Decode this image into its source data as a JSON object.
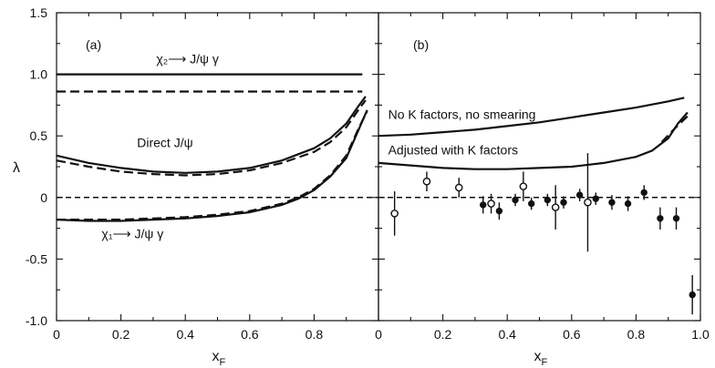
{
  "chart_data": [
    {
      "panel_label": "(a)",
      "type": "line",
      "xlabel": "x",
      "xlabel_sub": "F",
      "ylabel": "λ",
      "xlim": [
        0,
        1.0
      ],
      "ylim": [
        -1.0,
        1.5
      ],
      "x_ticks": [
        "0",
        "0.2",
        "0.4",
        "0.6",
        "0.8"
      ],
      "y_ticks": [
        "1.5",
        "1.0",
        "0.5",
        "0",
        "-0.5",
        "-1.0"
      ],
      "annotations": [
        {
          "text": "χ₂⟶ J/ψ γ",
          "x": 0.31,
          "y": 1.09
        },
        {
          "text": "Direct J/ψ",
          "x": 0.25,
          "y": 0.41
        },
        {
          "text": "χ₁⟶ J/ψ γ",
          "x": 0.14,
          "y": -0.33
        }
      ],
      "series": [
        {
          "style": "solid",
          "points": [
            [
              0,
              1.0
            ],
            [
              0.95,
              1.0
            ]
          ]
        },
        {
          "style": "dashed",
          "points": [
            [
              0,
              0.86
            ],
            [
              0.95,
              0.86
            ]
          ]
        },
        {
          "style": "solid",
          "points": [
            [
              0,
              0.34
            ],
            [
              0.1,
              0.28
            ],
            [
              0.2,
              0.24
            ],
            [
              0.3,
              0.21
            ],
            [
              0.4,
              0.2
            ],
            [
              0.5,
              0.21
            ],
            [
              0.6,
              0.24
            ],
            [
              0.7,
              0.3
            ],
            [
              0.8,
              0.4
            ],
            [
              0.85,
              0.48
            ],
            [
              0.9,
              0.6
            ],
            [
              0.94,
              0.75
            ],
            [
              0.96,
              0.82
            ]
          ]
        },
        {
          "style": "dashed",
          "points": [
            [
              0,
              0.3
            ],
            [
              0.1,
              0.25
            ],
            [
              0.2,
              0.21
            ],
            [
              0.3,
              0.19
            ],
            [
              0.4,
              0.18
            ],
            [
              0.5,
              0.19
            ],
            [
              0.6,
              0.22
            ],
            [
              0.7,
              0.28
            ],
            [
              0.8,
              0.37
            ],
            [
              0.85,
              0.45
            ],
            [
              0.9,
              0.57
            ],
            [
              0.94,
              0.72
            ],
            [
              0.96,
              0.79
            ]
          ]
        },
        {
          "style": "solid",
          "points": [
            [
              0,
              -0.18
            ],
            [
              0.1,
              -0.19
            ],
            [
              0.2,
              -0.19
            ],
            [
              0.3,
              -0.18
            ],
            [
              0.4,
              -0.17
            ],
            [
              0.5,
              -0.15
            ],
            [
              0.6,
              -0.12
            ],
            [
              0.7,
              -0.06
            ],
            [
              0.75,
              -0.01
            ],
            [
              0.8,
              0.06
            ],
            [
              0.85,
              0.17
            ],
            [
              0.9,
              0.32
            ],
            [
              0.94,
              0.56
            ],
            [
              0.965,
              0.71
            ]
          ]
        },
        {
          "style": "dashed",
          "points": [
            [
              0,
              -0.18
            ],
            [
              0.1,
              -0.18
            ],
            [
              0.2,
              -0.18
            ],
            [
              0.3,
              -0.17
            ],
            [
              0.4,
              -0.16
            ],
            [
              0.5,
              -0.14
            ],
            [
              0.6,
              -0.11
            ],
            [
              0.7,
              -0.05
            ],
            [
              0.75,
              0.0
            ],
            [
              0.8,
              0.07
            ],
            [
              0.85,
              0.18
            ],
            [
              0.9,
              0.34
            ],
            [
              0.94,
              0.57
            ],
            [
              0.965,
              0.7
            ]
          ]
        },
        {
          "style": "dotted",
          "points": [
            [
              0,
              0
            ],
            [
              1.0,
              0
            ]
          ]
        }
      ]
    },
    {
      "panel_label": "(b)",
      "type": "line+scatter",
      "xlabel": "x",
      "xlabel_sub": "F",
      "xlim": [
        0,
        1.0
      ],
      "ylim": [
        -1.0,
        1.5
      ],
      "x_ticks": [
        "0",
        "0.2",
        "0.4",
        "0.6",
        "0.8",
        "1.0"
      ],
      "annotations": [
        {
          "text": "No K factors, no smearing",
          "x": 0.03,
          "y": 0.64
        },
        {
          "text": "Adjusted with K factors",
          "x": 0.03,
          "y": 0.35
        }
      ],
      "series": [
        {
          "style": "solid",
          "points": [
            [
              0,
              0.5
            ],
            [
              0.1,
              0.51
            ],
            [
              0.2,
              0.53
            ],
            [
              0.3,
              0.55
            ],
            [
              0.4,
              0.58
            ],
            [
              0.5,
              0.61
            ],
            [
              0.6,
              0.65
            ],
            [
              0.7,
              0.69
            ],
            [
              0.8,
              0.73
            ],
            [
              0.9,
              0.78
            ],
            [
              0.95,
              0.81
            ]
          ]
        },
        {
          "style": "solid",
          "points": [
            [
              0,
              0.28
            ],
            [
              0.1,
              0.26
            ],
            [
              0.2,
              0.24
            ],
            [
              0.3,
              0.23
            ],
            [
              0.4,
              0.23
            ],
            [
              0.5,
              0.24
            ],
            [
              0.6,
              0.25
            ],
            [
              0.7,
              0.28
            ],
            [
              0.8,
              0.33
            ],
            [
              0.85,
              0.38
            ],
            [
              0.9,
              0.48
            ],
            [
              0.93,
              0.6
            ],
            [
              0.96,
              0.69
            ]
          ]
        },
        {
          "style": "dashed",
          "points": [
            [
              0.88,
              0.45
            ],
            [
              0.92,
              0.56
            ],
            [
              0.96,
              0.66
            ]
          ]
        },
        {
          "style": "dotted",
          "points": [
            [
              0,
              0
            ],
            [
              1.0,
              0
            ]
          ]
        }
      ],
      "points_open": [
        {
          "x": 0.05,
          "y": -0.13,
          "err": 0.18
        },
        {
          "x": 0.15,
          "y": 0.13,
          "err": 0.08
        },
        {
          "x": 0.25,
          "y": 0.08,
          "err": 0.08
        },
        {
          "x": 0.35,
          "y": -0.05,
          "err": 0.08
        },
        {
          "x": 0.45,
          "y": 0.09,
          "err": 0.12
        },
        {
          "x": 0.55,
          "y": -0.08,
          "err": 0.18
        },
        {
          "x": 0.65,
          "y": -0.04,
          "err": 0.4
        }
      ],
      "points_filled": [
        {
          "x": 0.325,
          "y": -0.06,
          "err": 0.07
        },
        {
          "x": 0.375,
          "y": -0.11,
          "err": 0.07
        },
        {
          "x": 0.425,
          "y": -0.02,
          "err": 0.05
        },
        {
          "x": 0.475,
          "y": -0.05,
          "err": 0.05
        },
        {
          "x": 0.525,
          "y": -0.02,
          "err": 0.05
        },
        {
          "x": 0.575,
          "y": -0.04,
          "err": 0.05
        },
        {
          "x": 0.625,
          "y": 0.02,
          "err": 0.05
        },
        {
          "x": 0.675,
          "y": -0.01,
          "err": 0.05
        },
        {
          "x": 0.725,
          "y": -0.04,
          "err": 0.06
        },
        {
          "x": 0.775,
          "y": -0.05,
          "err": 0.06
        },
        {
          "x": 0.825,
          "y": 0.04,
          "err": 0.06
        },
        {
          "x": 0.875,
          "y": -0.17,
          "err": 0.09
        },
        {
          "x": 0.925,
          "y": -0.17,
          "err": 0.09
        },
        {
          "x": 0.975,
          "y": -0.79,
          "err": 0.16
        }
      ]
    }
  ]
}
